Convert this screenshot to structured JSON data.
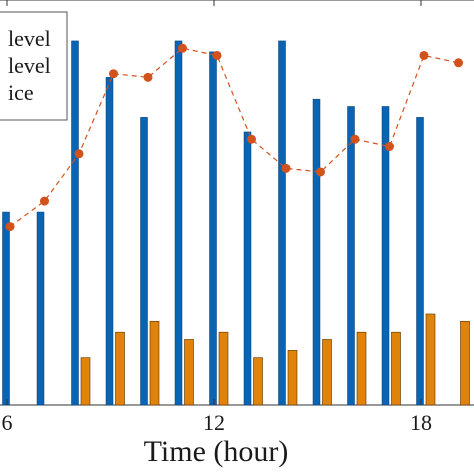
{
  "chart_data": {
    "type": "bar",
    "xlabel": "Time (hour)",
    "x": [
      6,
      7,
      8,
      9,
      10,
      11,
      12,
      13,
      14,
      15,
      16,
      17,
      18,
      19
    ],
    "x_ticks": [
      "6",
      "12",
      "18"
    ],
    "series": [
      {
        "name": "level",
        "kind": "bar",
        "color": "#0a64b4",
        "values": [
          0.53,
          0.53,
          1.0,
          0.9,
          0.79,
          1.0,
          0.97,
          0.75,
          1.0,
          0.84,
          0.82,
          0.82,
          0.79,
          null
        ]
      },
      {
        "name": "level",
        "kind": "bar",
        "color": "#e0830b",
        "values": [
          null,
          null,
          0.13,
          0.2,
          0.23,
          0.18,
          0.2,
          0.13,
          0.15,
          0.18,
          0.2,
          0.2,
          0.25,
          0.23
        ]
      },
      {
        "name": "ice",
        "kind": "line",
        "style": "dashed",
        "color": "#d2521c",
        "values": [
          0.49,
          0.56,
          0.69,
          0.91,
          0.9,
          0.98,
          0.96,
          0.73,
          0.65,
          0.64,
          0.73,
          0.71,
          0.96,
          0.94
        ]
      }
    ],
    "ylim": [
      0,
      1.03
    ],
    "grid": false,
    "legend_position": "top-left"
  }
}
